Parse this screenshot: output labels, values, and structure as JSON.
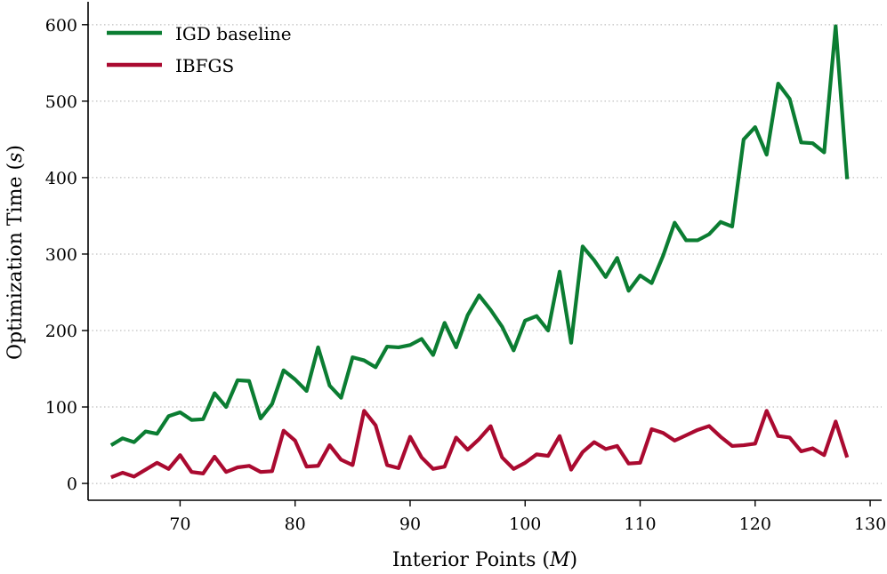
{
  "chart_data": {
    "type": "line",
    "xlabel_text": "Interior Points (",
    "xlabel_var": "M",
    "xlabel_end": ")",
    "ylabel_text": "Optimization Time (",
    "ylabel_var": "s",
    "ylabel_end": ")",
    "xlim": [
      62,
      131
    ],
    "ylim": [
      -22,
      630
    ],
    "xticks": [
      70,
      80,
      90,
      100,
      110,
      120,
      130
    ],
    "yticks": [
      0,
      100,
      200,
      300,
      400,
      500,
      600
    ],
    "grid": "horizontal dotted",
    "legend_position": "top-left",
    "x": [
      64,
      65,
      66,
      67,
      68,
      69,
      70,
      71,
      72,
      73,
      74,
      75,
      76,
      77,
      78,
      79,
      80,
      81,
      82,
      83,
      84,
      85,
      86,
      87,
      88,
      89,
      90,
      91,
      92,
      93,
      94,
      95,
      96,
      97,
      98,
      99,
      100,
      101,
      102,
      103,
      104,
      105,
      106,
      107,
      108,
      109,
      110,
      111,
      112,
      113,
      114,
      115,
      116,
      117,
      118,
      119,
      120,
      121,
      122,
      123,
      124,
      125,
      126,
      127,
      128
    ],
    "series": [
      {
        "name": "IGD baseline",
        "color": "#0b7d32",
        "values": [
          50,
          59,
          54,
          68,
          65,
          88,
          93,
          83,
          84,
          118,
          100,
          135,
          134,
          85,
          104,
          148,
          136,
          121,
          178,
          128,
          112,
          165,
          161,
          152,
          179,
          178,
          181,
          189,
          168,
          210,
          178,
          220,
          246,
          227,
          205,
          174,
          213,
          219,
          200,
          277,
          184,
          310,
          292,
          270,
          295,
          252,
          272,
          262,
          298,
          341,
          318,
          318,
          326,
          342,
          336,
          450,
          466,
          430,
          523,
          503,
          446,
          445,
          433,
          598,
          398
        ]
      },
      {
        "name": "IBFGS",
        "color": "#aa0a30",
        "values": [
          8,
          14,
          9,
          18,
          27,
          19,
          37,
          15,
          13,
          35,
          15,
          21,
          23,
          15,
          16,
          69,
          56,
          22,
          23,
          50,
          31,
          24,
          95,
          76,
          24,
          20,
          61,
          34,
          19,
          22,
          60,
          44,
          58,
          75,
          34,
          19,
          27,
          38,
          36,
          62,
          18,
          41,
          54,
          45,
          49,
          26,
          27,
          71,
          66,
          56,
          63,
          70,
          75,
          61,
          49,
          50,
          52,
          95,
          62,
          60,
          42,
          46,
          37,
          81,
          34
        ]
      }
    ]
  }
}
